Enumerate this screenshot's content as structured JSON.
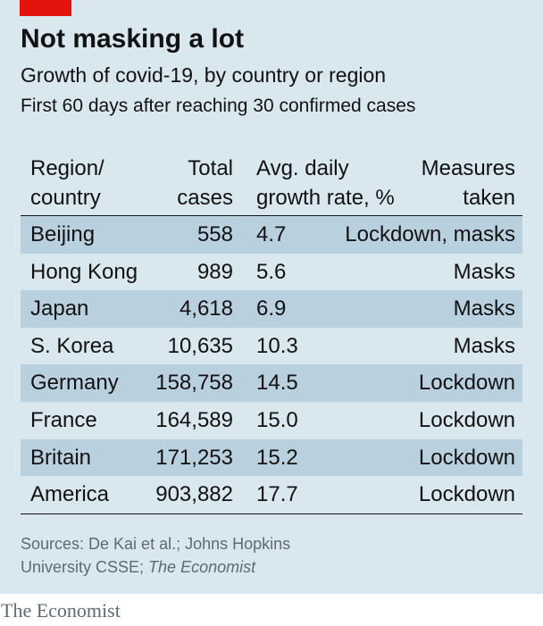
{
  "header": {
    "title": "Not masking a lot",
    "subtitle": "Growth of covid-19, by country or region",
    "note": "First 60 days after reaching 30 confirmed cases"
  },
  "colors": {
    "panel_background": "#d9e7ef",
    "row_shade": "#b9d0df",
    "accent_red": "#e3120b",
    "text": "#121212",
    "source_text": "#5e6b73"
  },
  "chart_data": {
    "type": "table",
    "columns": [
      [
        "Region/",
        "country"
      ],
      [
        "Total",
        "cases"
      ],
      [
        "Avg. daily",
        "growth rate, %"
      ],
      [
        "Measures",
        "taken"
      ]
    ],
    "rows": [
      {
        "region": "Beijing",
        "total": "558",
        "growth": "4.7",
        "measures": "Lockdown, masks"
      },
      {
        "region": "Hong Kong",
        "total": "989",
        "growth": "5.6",
        "measures": "Masks"
      },
      {
        "region": "Japan",
        "total": "4,618",
        "growth": "6.9",
        "measures": "Masks"
      },
      {
        "region": "S. Korea",
        "total": "10,635",
        "growth": "10.3",
        "measures": "Masks"
      },
      {
        "region": "Germany",
        "total": "158,758",
        "growth": "14.5",
        "measures": "Lockdown"
      },
      {
        "region": "France",
        "total": "164,589",
        "growth": "15.0",
        "measures": "Lockdown"
      },
      {
        "region": "Britain",
        "total": "171,253",
        "growth": "15.2",
        "measures": "Lockdown"
      },
      {
        "region": "America",
        "total": "903,882",
        "growth": "17.7",
        "measures": "Lockdown"
      }
    ]
  },
  "footer": {
    "sources_line1": "Sources: De Kai et al.; Johns Hopkins",
    "sources_line2_plain": "University CSSE; ",
    "sources_line2_italic": "The Economist",
    "logo": "The Economist"
  }
}
